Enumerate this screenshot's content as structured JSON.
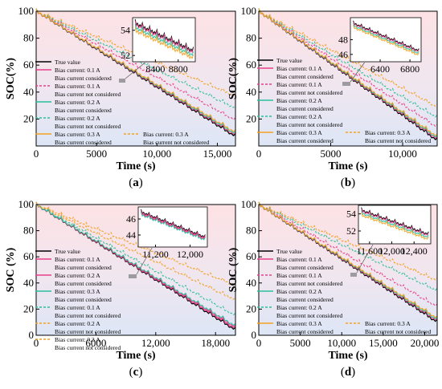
{
  "panels_meta": {
    "series_colors": [
      "#000000",
      "#e8408a",
      "#e8408a",
      "#2bbf9c",
      "#2bbf9c",
      "#f4a020",
      "#f4a020"
    ]
  },
  "chart_data": [
    {
      "type": "line",
      "panel_label": "(a)",
      "xlabel": "Time (s)",
      "ylabel": "SOC(%)",
      "xlim": [
        0,
        16500
      ],
      "ylim": [
        0,
        100
      ],
      "xticks": [
        0,
        5000,
        10000,
        15000
      ],
      "xtick_labels": [
        "0",
        "5000",
        "10,000",
        "15,000"
      ],
      "yticks": [
        20,
        40,
        60,
        80,
        100
      ],
      "ytick_labels": [
        "20",
        "40",
        "60",
        "80",
        "100"
      ],
      "series": [
        {
          "name": "True value",
          "x": [
            0,
            16500
          ],
          "y": [
            100,
            7
          ]
        },
        {
          "name": "Bias current: 0.1 A Bias current considered",
          "x": [
            0,
            16500
          ],
          "y": [
            100,
            8
          ]
        },
        {
          "name": "Bias current: 0.1 A Bias current not considered",
          "x": [
            0,
            16500
          ],
          "y": [
            100,
            19
          ]
        },
        {
          "name": "Bias current: 0.2 A Bias current considered",
          "x": [
            0,
            16500
          ],
          "y": [
            100,
            9
          ]
        },
        {
          "name": "Bias current: 0.2 A Bias current not considered",
          "x": [
            0,
            16500
          ],
          "y": [
            100,
            28
          ]
        },
        {
          "name": "Bias current: 0.3 A Bias current considered",
          "x": [
            0,
            16500
          ],
          "y": [
            100,
            10
          ]
        },
        {
          "name": "Bias current: 0.3 A Bias current not considered",
          "x": [
            0,
            16500
          ],
          "y": [
            100,
            37
          ]
        }
      ],
      "inset": {
        "xlim": [
          8000,
          9100
        ],
        "ylim": [
          51.5,
          55
        ],
        "xticks": [
          8400,
          8800
        ],
        "xtick_labels": [
          "8400",
          "8800"
        ],
        "yticks": [
          52,
          54
        ],
        "ytick_labels": [
          "52",
          "54"
        ]
      }
    },
    {
      "type": "line",
      "panel_label": "(b)",
      "xlabel": "Time (s)",
      "ylabel": "SOC(%)",
      "xlim": [
        0,
        12400
      ],
      "ylim": [
        0,
        100
      ],
      "xticks": [
        0,
        5000,
        10000
      ],
      "xtick_labels": [
        "0",
        "5000",
        "10,000"
      ],
      "yticks": [
        20,
        40,
        60,
        80,
        100
      ],
      "ytick_labels": [
        "20",
        "40",
        "60",
        "80",
        "100"
      ],
      "series": [
        {
          "name": "True value",
          "x": [
            0,
            12400
          ],
          "y": [
            100,
            4
          ]
        },
        {
          "name": "Bias current: 0.1 A Bias current considered",
          "x": [
            0,
            12400
          ],
          "y": [
            100,
            5
          ]
        },
        {
          "name": "Bias current: 0.1 A Bias current not considered",
          "x": [
            0,
            12400
          ],
          "y": [
            100,
            14
          ]
        },
        {
          "name": "Bias current: 0.2 A Bias current considered",
          "x": [
            0,
            12400
          ],
          "y": [
            100,
            6
          ]
        },
        {
          "name": "Bias current: 0.2 A Bias current not considered",
          "x": [
            0,
            12400
          ],
          "y": [
            100,
            21
          ]
        },
        {
          "name": "Bias current: 0.3 A Bias current considered",
          "x": [
            0,
            12400
          ],
          "y": [
            100,
            7
          ]
        },
        {
          "name": "Bias current: 0.3 A Bias current not considered",
          "x": [
            0,
            12400
          ],
          "y": [
            100,
            29
          ]
        }
      ],
      "inset": {
        "xlim": [
          6000,
          6950
        ],
        "ylim": [
          45,
          51
        ],
        "xticks": [
          6400,
          6800
        ],
        "xtick_labels": [
          "6400",
          "6800"
        ],
        "yticks": [
          46,
          48
        ],
        "ytick_labels": [
          "46",
          "48"
        ]
      }
    },
    {
      "type": "line",
      "panel_label": "(c)",
      "xlabel": "Time (s)",
      "ylabel": "SOC (%)",
      "xlim": [
        0,
        20000
      ],
      "ylim": [
        0,
        100
      ],
      "xticks": [
        0,
        6000,
        12000,
        18000
      ],
      "xtick_labels": [
        "0",
        "6000",
        "12,000",
        "18,000"
      ],
      "yticks": [
        0,
        20,
        40,
        60,
        80,
        100
      ],
      "ytick_labels": [
        "0",
        "20",
        "40",
        "60",
        "80",
        "100"
      ],
      "series": [
        {
          "name": "True value",
          "x": [
            0,
            20000
          ],
          "y": [
            100,
            4
          ]
        },
        {
          "name": "Bias current: 0.1 A Bias current considered",
          "x": [
            0,
            20000
          ],
          "y": [
            100,
            5
          ]
        },
        {
          "name": "Bias current: 0.2 A Bias current considered",
          "x": [
            0,
            20000
          ],
          "y": [
            100,
            6
          ]
        },
        {
          "name": "Bias current: 0.3 A Bias current considered",
          "x": [
            0,
            20000
          ],
          "y": [
            100,
            7
          ]
        },
        {
          "name": "Bias current: 0.1 A Bias current not considered",
          "x": [
            0,
            20000
          ],
          "y": [
            100,
            15
          ]
        },
        {
          "name": "Bias current: 0.2 A Bias current not considered",
          "x": [
            0,
            20000
          ],
          "y": [
            100,
            27
          ]
        },
        {
          "name": "Bias current: 0.3 A Bias current not considered",
          "x": [
            0,
            20000
          ],
          "y": [
            100,
            38
          ]
        }
      ],
      "inset": {
        "xlim": [
          10800,
          12400
        ],
        "ylim": [
          42.5,
          47.5
        ],
        "xticks": [
          11200,
          12000
        ],
        "xtick_labels": [
          "11,200",
          "12,000"
        ],
        "yticks": [
          44,
          46
        ],
        "ytick_labels": [
          "44",
          "46"
        ]
      }
    },
    {
      "type": "line",
      "panel_label": "(d)",
      "xlabel": "Time (s)",
      "ylabel": "SOC (%)",
      "xlim": [
        0,
        21500
      ],
      "ylim": [
        0,
        100
      ],
      "xticks": [
        0,
        5000,
        10000,
        15000,
        20000
      ],
      "xtick_labels": [
        "0",
        "5000",
        "10,000",
        "15,000",
        "20,000"
      ],
      "yticks": [
        0,
        20,
        40,
        60,
        80,
        100
      ],
      "ytick_labels": [
        "0",
        "20",
        "40",
        "60",
        "80",
        "100"
      ],
      "series": [
        {
          "name": "True value",
          "x": [
            0,
            21500
          ],
          "y": [
            100,
            10
          ]
        },
        {
          "name": "Bias current: 0.1 A Bias current considered",
          "x": [
            0,
            21500
          ],
          "y": [
            100,
            11
          ]
        },
        {
          "name": "Bias current: 0.1 A Bias current not considered",
          "x": [
            0,
            21500
          ],
          "y": [
            100,
            22
          ]
        },
        {
          "name": "Bias current: 0.2 A Bias current considered",
          "x": [
            0,
            21500
          ],
          "y": [
            100,
            12
          ]
        },
        {
          "name": "Bias current: 0.2 A Bias current not considered",
          "x": [
            0,
            21500
          ],
          "y": [
            100,
            34
          ]
        },
        {
          "name": "Bias current: 0.3 A Bias current considered",
          "x": [
            0,
            21500
          ],
          "y": [
            100,
            13
          ]
        },
        {
          "name": "Bias current: 0.3 A Bias current not considered",
          "x": [
            0,
            21500
          ],
          "y": [
            100,
            42
          ]
        }
      ],
      "inset": {
        "xlim": [
          11400,
          12700
        ],
        "ylim": [
          50.5,
          55
        ],
        "xticks": [
          11600,
          12000,
          12400
        ],
        "xtick_labels": [
          "11,600",
          "12,000",
          "12,400"
        ],
        "yticks": [
          52,
          54
        ],
        "ytick_labels": [
          "52",
          "54"
        ]
      }
    }
  ]
}
